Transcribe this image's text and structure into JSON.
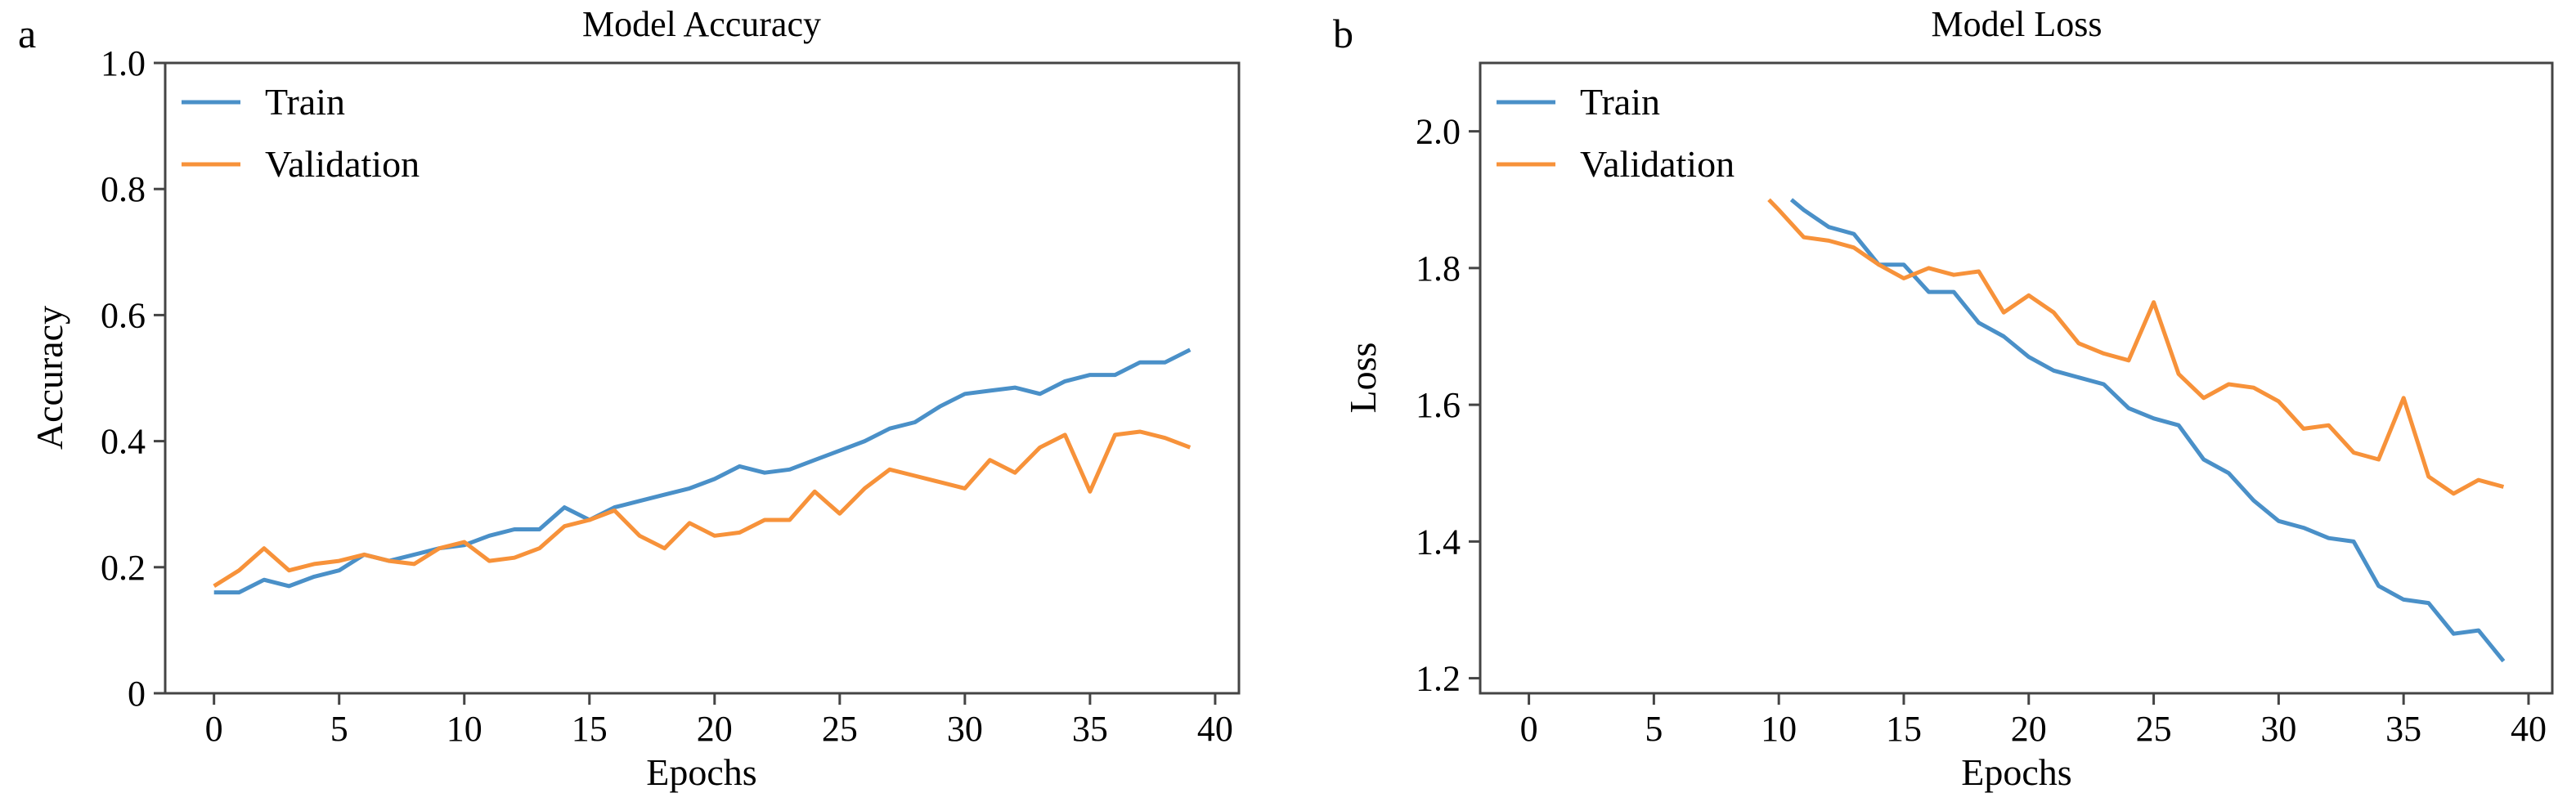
{
  "chart_data": [
    {
      "panel_label": "a",
      "type": "line",
      "title": "Model Accuracy",
      "xlabel": "Epochs",
      "ylabel": "Accuracy",
      "xlim": [
        -1.95,
        40.95
      ],
      "ylim": [
        0,
        1.0
      ],
      "xticks": [
        0,
        5,
        10,
        15,
        20,
        25,
        30,
        35,
        40
      ],
      "yticks": [
        0,
        0.2,
        0.4,
        0.6,
        0.8,
        1.0
      ],
      "ytick_labels": [
        "0",
        "0.2",
        "0.4",
        "0.6",
        "0.8",
        "1.0"
      ],
      "grid": false,
      "legend_position": "top-left",
      "series": [
        {
          "name": "Train",
          "color": "#4a90c8",
          "x": [
            0,
            1,
            2,
            3,
            4,
            5,
            6,
            7,
            8,
            9,
            10,
            11,
            12,
            13,
            14,
            15,
            16,
            17,
            18,
            19,
            20,
            21,
            22,
            23,
            24,
            25,
            26,
            27,
            28,
            29,
            30,
            31,
            32,
            33,
            34,
            35,
            36,
            37,
            38,
            39
          ],
          "y": [
            0.16,
            0.16,
            0.18,
            0.17,
            0.185,
            0.195,
            0.22,
            0.21,
            0.22,
            0.23,
            0.235,
            0.25,
            0.26,
            0.26,
            0.295,
            0.275,
            0.295,
            0.305,
            0.315,
            0.325,
            0.34,
            0.36,
            0.35,
            0.355,
            0.37,
            0.385,
            0.4,
            0.42,
            0.43,
            0.455,
            0.475,
            0.48,
            0.485,
            0.475,
            0.495,
            0.505,
            0.505,
            0.525,
            0.525,
            0.545
          ]
        },
        {
          "name": "Validation",
          "color": "#f7923a",
          "x": [
            0,
            1,
            2,
            3,
            4,
            5,
            6,
            7,
            8,
            9,
            10,
            11,
            12,
            13,
            14,
            15,
            16,
            17,
            18,
            19,
            20,
            21,
            22,
            23,
            24,
            25,
            26,
            27,
            28,
            29,
            30,
            31,
            32,
            33,
            34,
            35,
            36,
            37,
            38,
            39
          ],
          "y": [
            0.17,
            0.195,
            0.23,
            0.195,
            0.205,
            0.21,
            0.22,
            0.21,
            0.205,
            0.23,
            0.24,
            0.21,
            0.215,
            0.23,
            0.265,
            0.275,
            0.29,
            0.25,
            0.23,
            0.27,
            0.25,
            0.255,
            0.275,
            0.275,
            0.32,
            0.285,
            0.325,
            0.355,
            0.345,
            0.335,
            0.325,
            0.37,
            0.35,
            0.39,
            0.41,
            0.32,
            0.41,
            0.415,
            0.405,
            0.39
          ]
        }
      ]
    },
    {
      "panel_label": "b",
      "type": "line",
      "title": "Model Loss",
      "xlabel": "Epochs",
      "ylabel": "Loss",
      "xlim": [
        -1.95,
        40.95
      ],
      "ylim": [
        1.178,
        2.1
      ],
      "xticks": [
        0,
        5,
        10,
        15,
        20,
        25,
        30,
        35,
        40
      ],
      "yticks": [
        1.2,
        1.4,
        1.6,
        1.8,
        2.0
      ],
      "ytick_labels": [
        "1.2",
        "1.4",
        "1.6",
        "1.8",
        "2.0"
      ],
      "grid": false,
      "legend_position": "top-left",
      "series": [
        {
          "name": "Train",
          "color": "#4a90c8",
          "x": [
            10.5,
            11,
            12,
            13,
            14,
            15,
            16,
            17,
            18,
            19,
            20,
            21,
            22,
            23,
            24,
            25,
            26,
            27,
            28,
            29,
            30,
            31,
            32,
            33,
            34,
            35,
            36,
            37,
            38,
            39
          ],
          "y": [
            1.9,
            1.885,
            1.86,
            1.85,
            1.805,
            1.805,
            1.765,
            1.765,
            1.72,
            1.7,
            1.67,
            1.65,
            1.64,
            1.63,
            1.595,
            1.58,
            1.57,
            1.52,
            1.5,
            1.46,
            1.43,
            1.42,
            1.405,
            1.4,
            1.335,
            1.315,
            1.31,
            1.265,
            1.27,
            1.225
          ]
        },
        {
          "name": "Validation",
          "color": "#f7923a",
          "x": [
            9.6,
            10,
            11,
            12,
            13,
            14,
            15,
            16,
            17,
            18,
            19,
            20,
            21,
            22,
            23,
            24,
            25,
            26,
            27,
            28,
            29,
            30,
            31,
            32,
            33,
            34,
            35,
            36,
            37,
            38,
            39
          ],
          "y": [
            1.9,
            1.885,
            1.845,
            1.84,
            1.83,
            1.805,
            1.785,
            1.8,
            1.79,
            1.795,
            1.735,
            1.76,
            1.735,
            1.69,
            1.675,
            1.665,
            1.75,
            1.645,
            1.61,
            1.63,
            1.625,
            1.605,
            1.565,
            1.57,
            1.53,
            1.52,
            1.61,
            1.495,
            1.47,
            1.49,
            1.48
          ]
        }
      ]
    }
  ]
}
